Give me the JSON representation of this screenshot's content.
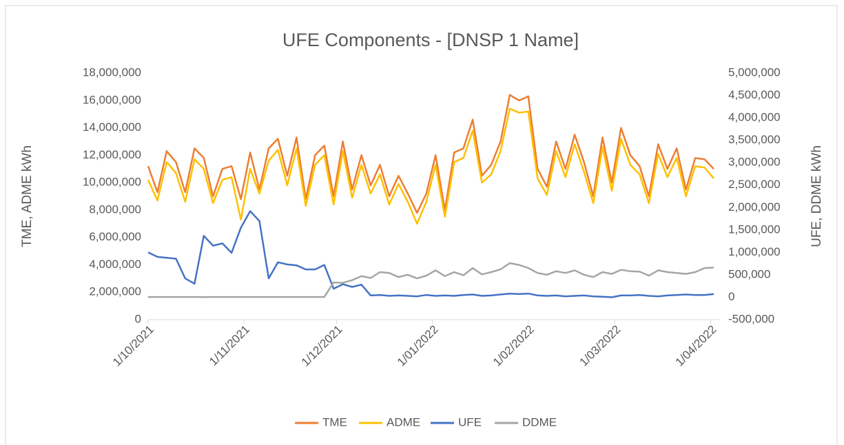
{
  "chart_data": {
    "type": "line",
    "title": "UFE Components - [DNSP 1 Name]",
    "y_label": "TME, ADME kWh",
    "y2_label": "UFE, DDME kWh",
    "x": [
      "2021-10-01",
      "2021-10-04",
      "2021-10-07",
      "2021-10-10",
      "2021-10-13",
      "2021-10-16",
      "2021-10-19",
      "2021-10-22",
      "2021-10-25",
      "2021-10-28",
      "2021-10-31",
      "2021-11-03",
      "2021-11-06",
      "2021-11-09",
      "2021-11-12",
      "2021-11-15",
      "2021-11-18",
      "2021-11-21",
      "2021-11-24",
      "2021-11-27",
      "2021-11-30",
      "2021-12-03",
      "2021-12-06",
      "2021-12-09",
      "2021-12-12",
      "2021-12-15",
      "2021-12-18",
      "2021-12-21",
      "2021-12-24",
      "2021-12-27",
      "2021-12-30",
      "2022-01-02",
      "2022-01-05",
      "2022-01-08",
      "2022-01-11",
      "2022-01-14",
      "2022-01-17",
      "2022-01-20",
      "2022-01-23",
      "2022-01-26",
      "2022-01-29",
      "2022-02-01",
      "2022-02-04",
      "2022-02-07",
      "2022-02-10",
      "2022-02-13",
      "2022-02-16",
      "2022-02-19",
      "2022-02-22",
      "2022-02-25",
      "2022-02-28",
      "2022-03-03",
      "2022-03-06",
      "2022-03-09",
      "2022-03-12",
      "2022-03-15",
      "2022-03-18",
      "2022-03-21",
      "2022-03-24",
      "2022-03-27",
      "2022-03-30",
      "2022-04-02"
    ],
    "xlim": [
      "2021-10-01",
      "2022-04-04"
    ],
    "xticks": [
      {
        "value": "2021-10-01",
        "label": "1/10/2021"
      },
      {
        "value": "2021-11-01",
        "label": "1/11/2021"
      },
      {
        "value": "2021-12-01",
        "label": "1/12/2021"
      },
      {
        "value": "2022-01-01",
        "label": "1/01/2022"
      },
      {
        "value": "2022-02-01",
        "label": "1/02/2022"
      },
      {
        "value": "2022-03-01",
        "label": "1/03/2022"
      },
      {
        "value": "2022-04-01",
        "label": "1/04/2022"
      }
    ],
    "ylim": [
      0,
      18000000
    ],
    "yticks": [
      0,
      {
        "value": 2000000,
        "label": "2,000,000"
      },
      {
        "value": 4000000,
        "label": "4,000,000"
      },
      {
        "value": 6000000,
        "label": "6,000,000"
      },
      {
        "value": 8000000,
        "label": "8,000,000"
      },
      {
        "value": 10000000,
        "label": "10,000,000"
      },
      {
        "value": 12000000,
        "label": "12,000,000"
      },
      {
        "value": 14000000,
        "label": "14,000,000"
      },
      {
        "value": 16000000,
        "label": "16,000,000"
      },
      {
        "value": 18000000,
        "label": "18,000,000"
      }
    ],
    "y2lim": [
      -500000,
      5000000
    ],
    "y2ticks": [
      {
        "value": -500000,
        "label": "-500,000"
      },
      0,
      {
        "value": 500000,
        "label": "500,000"
      },
      {
        "value": 1000000,
        "label": "1,000,000"
      },
      {
        "value": 1500000,
        "label": "1,500,000"
      },
      {
        "value": 2000000,
        "label": "2,000,000"
      },
      {
        "value": 2500000,
        "label": "2,500,000"
      },
      {
        "value": 3000000,
        "label": "3,000,000"
      },
      {
        "value": 3500000,
        "label": "3,500,000"
      },
      {
        "value": 4000000,
        "label": "4,000,000"
      },
      {
        "value": 4500000,
        "label": "4,500,000"
      },
      {
        "value": 5000000,
        "label": "5,000,000"
      }
    ],
    "legend": "bottom",
    "series": [
      {
        "name": "TME",
        "color": "#ed7d31",
        "values": [
          11200000,
          9300000,
          12300000,
          11500000,
          9300000,
          12500000,
          11800000,
          9000000,
          11000000,
          11200000,
          8800000,
          12200000,
          9500000,
          12500000,
          13200000,
          10500000,
          13300000,
          8800000,
          12000000,
          12700000,
          9000000,
          13000000,
          9500000,
          12000000,
          9800000,
          11300000,
          9000000,
          10500000,
          9200000,
          7800000,
          9200000,
          12000000,
          8000000,
          12200000,
          12500000,
          14600000,
          10500000,
          11300000,
          13000000,
          16400000,
          16000000,
          16300000,
          11000000,
          9700000,
          13000000,
          11000000,
          13500000,
          11500000,
          9000000,
          13300000,
          10000000,
          14000000,
          12000000,
          11200000,
          9000000,
          12800000,
          11000000,
          12500000,
          9500000,
          11800000,
          11700000,
          11000000
        ]
      },
      {
        "name": "ADME",
        "color": "#ffc000",
        "values": [
          10200000,
          8700000,
          11500000,
          10700000,
          8600000,
          11700000,
          11000000,
          8500000,
          10200000,
          10400000,
          7300000,
          11000000,
          9200000,
          11600000,
          12400000,
          9800000,
          12500000,
          8300000,
          11300000,
          12000000,
          8400000,
          12300000,
          8900000,
          11300000,
          9200000,
          10600000,
          8400000,
          9900000,
          8600000,
          7000000,
          8600000,
          11300000,
          7500000,
          11500000,
          11800000,
          13800000,
          10000000,
          10600000,
          12300000,
          15400000,
          15100000,
          15200000,
          10300000,
          9100000,
          12300000,
          10400000,
          12800000,
          10800000,
          8500000,
          12600000,
          9400000,
          13200000,
          11300000,
          10600000,
          8500000,
          12100000,
          10400000,
          11800000,
          9000000,
          11200000,
          11100000,
          10300000
        ]
      },
      {
        "name": "UFE",
        "color": "#4472c4",
        "axis": "y2",
        "values": [
          1000000,
          900000,
          880000,
          860000,
          420000,
          300000,
          1370000,
          1150000,
          1200000,
          990000,
          1550000,
          1920000,
          1700000,
          420000,
          780000,
          730000,
          710000,
          620000,
          620000,
          720000,
          190000,
          290000,
          230000,
          280000,
          40000,
          50000,
          30000,
          40000,
          30000,
          20000,
          50000,
          30000,
          40000,
          30000,
          50000,
          60000,
          30000,
          40000,
          60000,
          80000,
          70000,
          80000,
          40000,
          30000,
          40000,
          20000,
          30000,
          40000,
          20000,
          10000,
          0,
          40000,
          40000,
          50000,
          30000,
          20000,
          40000,
          50000,
          60000,
          50000,
          50000,
          70000
        ]
      },
      {
        "name": "DDME",
        "color": "#a5a5a5",
        "axis": "y2",
        "values": [
          5000,
          5000,
          5000,
          5000,
          5000,
          5000,
          3000,
          5000,
          5000,
          5000,
          5000,
          5000,
          5000,
          5000,
          5000,
          5000,
          5000,
          5000,
          5000,
          5000,
          330000,
          320000,
          380000,
          470000,
          430000,
          560000,
          540000,
          450000,
          500000,
          420000,
          480000,
          600000,
          470000,
          560000,
          490000,
          650000,
          510000,
          560000,
          620000,
          760000,
          720000,
          650000,
          540000,
          500000,
          580000,
          540000,
          600000,
          500000,
          450000,
          560000,
          520000,
          610000,
          580000,
          570000,
          480000,
          600000,
          560000,
          540000,
          520000,
          560000,
          650000,
          660000
        ]
      }
    ]
  }
}
